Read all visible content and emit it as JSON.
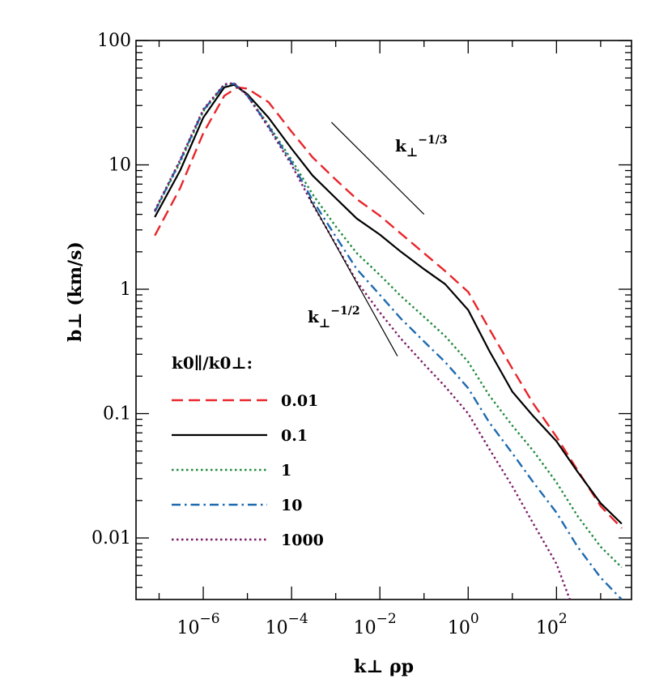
{
  "chart_data": {
    "type": "line",
    "x_scale": "log",
    "y_scale": "log",
    "xlim": [
      3e-08,
      5000.0
    ],
    "ylim": [
      0.0032,
      100
    ],
    "xlabel": "k⊥ ρp",
    "ylabel": "b⊥   (km/s)",
    "x_ticks": [
      {
        "value": 1e-06,
        "base": "10",
        "exp": "−6"
      },
      {
        "value": 0.0001,
        "base": "10",
        "exp": "−4"
      },
      {
        "value": 0.01,
        "base": "10",
        "exp": "−2"
      },
      {
        "value": 1,
        "base": "10",
        "exp": "0"
      },
      {
        "value": 100,
        "base": "10",
        "exp": "2"
      }
    ],
    "y_ticks": [
      {
        "value": 100,
        "label": "100"
      },
      {
        "value": 10,
        "label": "10"
      },
      {
        "value": 1,
        "label": "1"
      },
      {
        "value": 0.1,
        "label": "0.1"
      },
      {
        "value": 0.01,
        "label": "0.01"
      }
    ],
    "legend": {
      "title": "k0∥/k0⊥:",
      "placement": "left"
    },
    "series": [
      {
        "name": "0.01",
        "color": "#e8252a",
        "dash": "dashed",
        "x": [
          8e-08,
          3e-07,
          1e-06,
          3e-06,
          6e-06,
          1e-05,
          3e-05,
          0.0001,
          0.0003,
          0.001,
          0.003,
          0.01,
          0.03,
          0.1,
          0.3,
          1,
          3,
          10,
          30,
          100,
          300,
          1000,
          3000
        ],
        "y": [
          2.7,
          6.5,
          18,
          36,
          42,
          41,
          32,
          18.5,
          11.5,
          7.6,
          5.3,
          3.9,
          2.8,
          1.95,
          1.4,
          0.95,
          0.48,
          0.23,
          0.12,
          0.065,
          0.035,
          0.018,
          0.012
        ]
      },
      {
        "name": "0.1",
        "color": "#000000",
        "dash": "solid",
        "x": [
          8e-08,
          3e-07,
          1e-06,
          3e-06,
          5e-06,
          1e-05,
          3e-05,
          0.0001,
          0.0003,
          0.001,
          0.003,
          0.01,
          0.03,
          0.1,
          0.3,
          1,
          3,
          10,
          30,
          100,
          300,
          1000,
          3000
        ],
        "y": [
          3.8,
          9,
          24,
          42,
          44,
          37,
          24,
          13.5,
          8.2,
          5.4,
          3.7,
          2.75,
          2.0,
          1.45,
          1.1,
          0.68,
          0.32,
          0.15,
          0.095,
          0.06,
          0.034,
          0.019,
          0.013
        ]
      },
      {
        "name": "1",
        "color": "#1f8a3a",
        "dash": "dotted",
        "x": [
          8e-08,
          3e-07,
          1e-06,
          3e-06,
          5e-06,
          1e-05,
          3e-05,
          0.0001,
          0.0003,
          0.001,
          0.003,
          0.01,
          0.03,
          0.1,
          0.3,
          1,
          3,
          10,
          30,
          100,
          300,
          1000,
          3000
        ],
        "y": [
          4.2,
          10.5,
          27,
          44,
          45,
          36,
          21,
          11,
          5.8,
          3.2,
          1.95,
          1.3,
          0.88,
          0.6,
          0.42,
          0.26,
          0.14,
          0.08,
          0.05,
          0.028,
          0.015,
          0.0085,
          0.0058
        ]
      },
      {
        "name": "10",
        "color": "#1e6aaf",
        "dash": "dashdot",
        "x": [
          8e-08,
          3e-07,
          1e-06,
          3e-06,
          5e-06,
          1e-05,
          3e-05,
          0.0001,
          0.0003,
          0.001,
          0.003,
          0.01,
          0.03,
          0.1,
          0.3,
          1,
          3,
          10,
          30,
          100,
          300,
          1000,
          3000
        ],
        "y": [
          4.2,
          10.8,
          27.5,
          44,
          45,
          36,
          20.5,
          10.5,
          5.2,
          2.65,
          1.45,
          0.9,
          0.58,
          0.38,
          0.26,
          0.16,
          0.085,
          0.048,
          0.028,
          0.016,
          0.0085,
          0.0048,
          0.0032
        ]
      },
      {
        "name": "1000",
        "color": "#7b1a66",
        "dash": "dotted",
        "x": [
          8e-08,
          3e-07,
          1e-06,
          3e-06,
          5e-06,
          1e-05,
          3e-05,
          0.0001,
          0.0003,
          0.001,
          0.003,
          0.01,
          0.03,
          0.1,
          0.3,
          1,
          3,
          10,
          30,
          100,
          200
        ],
        "y": [
          4.3,
          11,
          28,
          44.5,
          45.5,
          36,
          20,
          10,
          4.8,
          2.3,
          1.15,
          0.65,
          0.4,
          0.25,
          0.165,
          0.1,
          0.052,
          0.026,
          0.013,
          0.0062,
          0.0032
        ]
      }
    ],
    "annotations": [
      {
        "base": "k",
        "sub": "⊥",
        "sup": "−1/3",
        "x1": 0.0008,
        "y1": 22,
        "x2": 0.1,
        "y2": 4.0
      },
      {
        "base": "k",
        "sub": "⊥",
        "sup": "−1/2",
        "x1": 0.00025,
        "y1": 5.5,
        "x2": 0.025,
        "y2": 0.29
      }
    ]
  }
}
